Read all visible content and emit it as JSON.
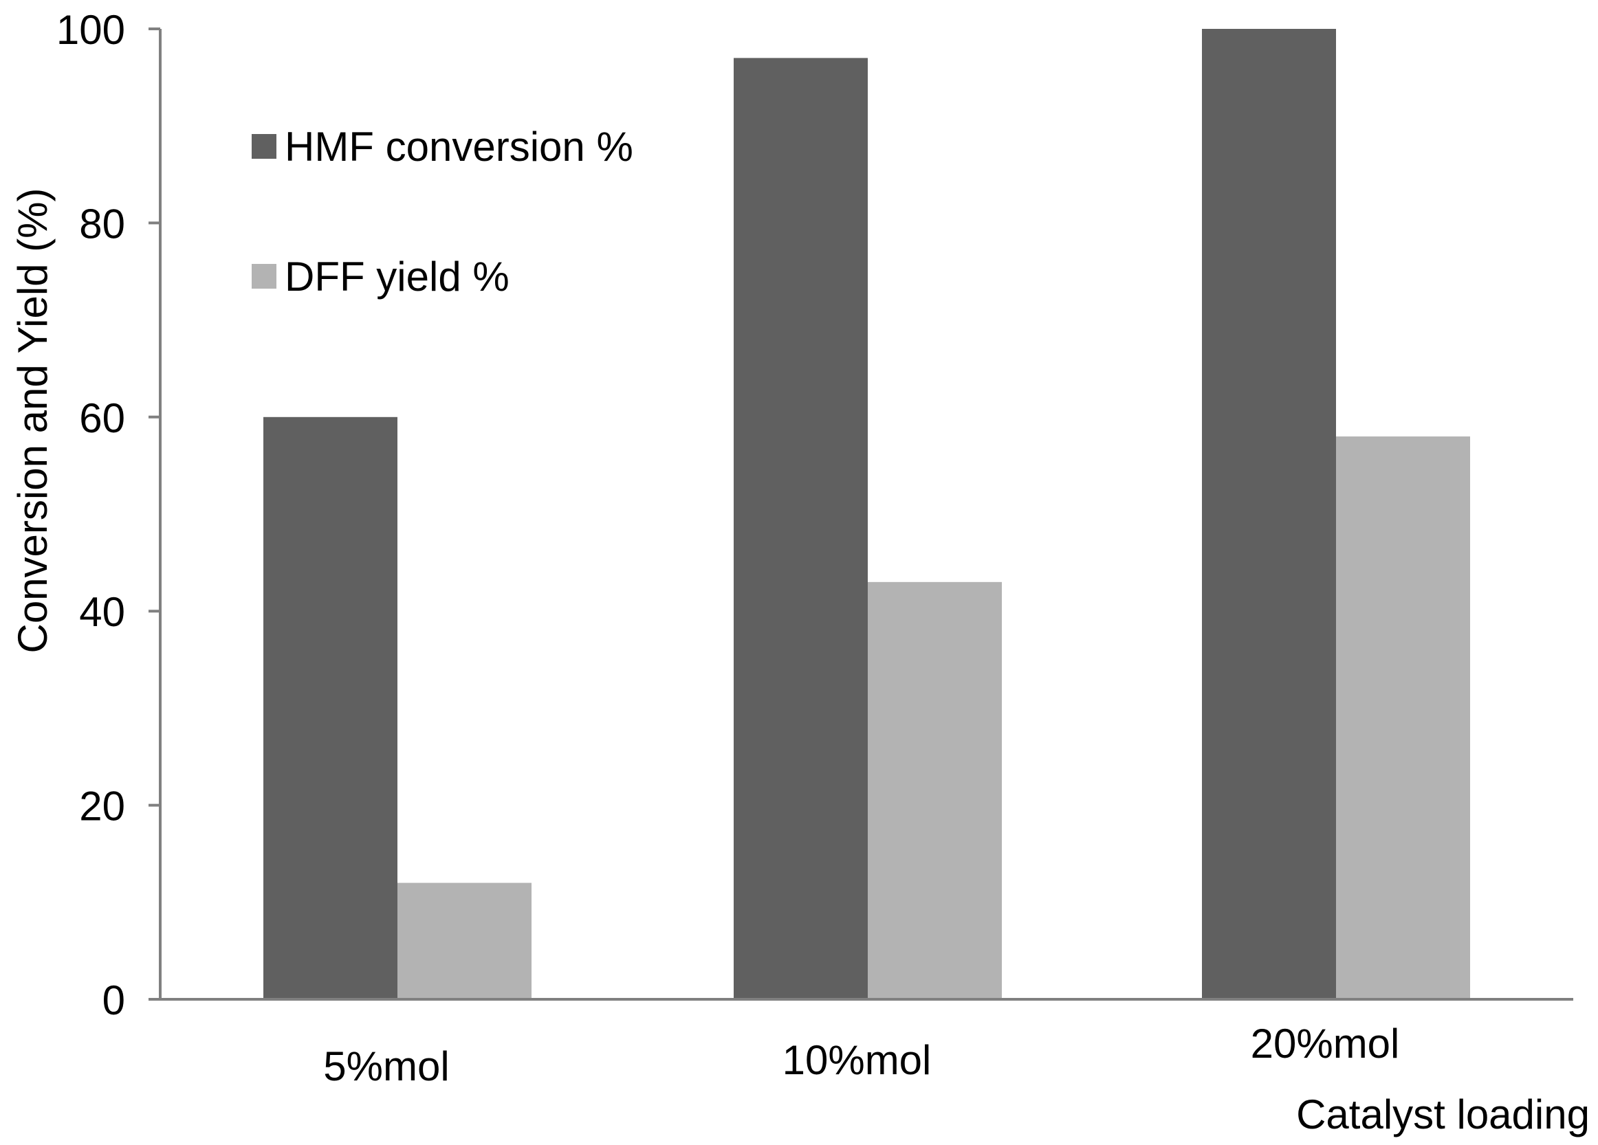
{
  "chart_data": {
    "type": "bar",
    "title": "",
    "xlabel": "Catalyst loading",
    "ylabel": "Conversion and  Yield (%)",
    "ylim": [
      0,
      100
    ],
    "yticks": [
      "0",
      "20",
      "40",
      "60",
      "80",
      "100"
    ],
    "categories": [
      "5%mol",
      "10%mol",
      "20%mol"
    ],
    "series": [
      {
        "name": "HMF conversion %",
        "values": [
          60,
          97,
          100
        ],
        "color": "#606060"
      },
      {
        "name": "DFF yield %",
        "values": [
          12,
          43,
          58
        ],
        "color": "#b3b3b3"
      }
    ],
    "legend": "top-left",
    "grid": false
  }
}
